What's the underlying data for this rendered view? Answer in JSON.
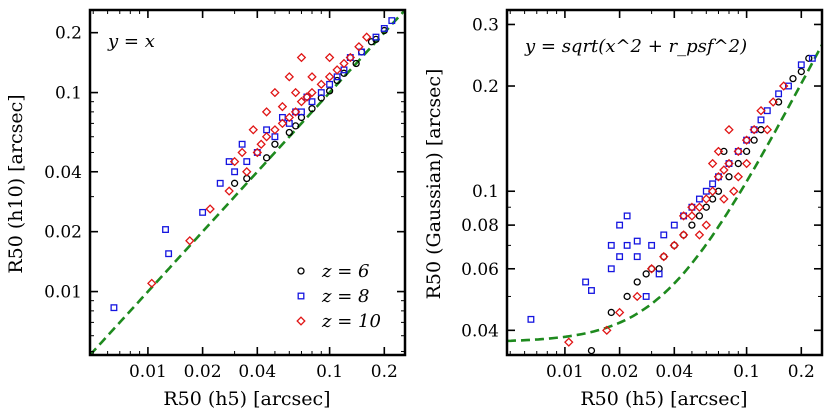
{
  "chart_data": [
    {
      "type": "scatter",
      "xscale": "log",
      "yscale": "log",
      "xlim": [
        0.0048,
        0.26
      ],
      "ylim": [
        0.0048,
        0.26
      ],
      "xticks": [
        0.01,
        0.02,
        0.04,
        0.1,
        0.2
      ],
      "yticks": [
        0.01,
        0.02,
        0.04,
        0.1,
        0.2
      ],
      "xtick_labels": [
        "0.01",
        "0.02",
        "0.04",
        "0.1",
        "0.2"
      ],
      "ytick_labels": [
        "0.01",
        "0.02",
        "0.04",
        "0.1",
        "0.2"
      ],
      "xlabel": "R50 (h5) [arcsec]",
      "ylabel": "R50 (h10) [arcsec]",
      "annotation": "y = x",
      "reference_line": {
        "type": "identity",
        "color": "#1e8a1e",
        "style": "dashed"
      },
      "legend": [
        {
          "label": "z = 6",
          "marker": "circle",
          "color": "#000000"
        },
        {
          "label": "z = 8",
          "marker": "square",
          "color": "#1515e0"
        },
        {
          "label": "z = 10",
          "marker": "diamond",
          "color": "#e01515"
        }
      ],
      "legend_position": "bottom-right",
      "series": [
        {
          "name": "z = 6",
          "points": [
            [
              0.035,
              0.037
            ],
            [
              0.045,
              0.047
            ],
            [
              0.06,
              0.063
            ],
            [
              0.08,
              0.083
            ],
            [
              0.1,
              0.102
            ],
            [
              0.12,
              0.125
            ],
            [
              0.15,
              0.16
            ],
            [
              0.17,
              0.18
            ],
            [
              0.2,
              0.205
            ],
            [
              0.05,
              0.055
            ],
            [
              0.065,
              0.068
            ],
            [
              0.09,
              0.094
            ],
            [
              0.14,
              0.14
            ],
            [
              0.18,
              0.185
            ],
            [
              0.11,
              0.115
            ],
            [
              0.07,
              0.075
            ],
            [
              0.03,
              0.035
            ]
          ]
        },
        {
          "name": "z = 8",
          "points": [
            [
              0.0065,
              0.0083
            ],
            [
              0.0125,
              0.0205
            ],
            [
              0.013,
              0.0155
            ],
            [
              0.02,
              0.025
            ],
            [
              0.025,
              0.035
            ],
            [
              0.03,
              0.04
            ],
            [
              0.035,
              0.045
            ],
            [
              0.04,
              0.05
            ],
            [
              0.05,
              0.06
            ],
            [
              0.06,
              0.07
            ],
            [
              0.07,
              0.08
            ],
            [
              0.08,
              0.09
            ],
            [
              0.1,
              0.11
            ],
            [
              0.12,
              0.13
            ],
            [
              0.15,
              0.16
            ],
            [
              0.2,
              0.21
            ],
            [
              0.045,
              0.065
            ],
            [
              0.055,
              0.075
            ],
            [
              0.09,
              0.1
            ],
            [
              0.13,
              0.15
            ],
            [
              0.18,
              0.19
            ],
            [
              0.028,
              0.045
            ],
            [
              0.033,
              0.055
            ],
            [
              0.065,
              0.08
            ],
            [
              0.075,
              0.095
            ],
            [
              0.11,
              0.12
            ],
            [
              0.22,
              0.23
            ]
          ]
        },
        {
          "name": "z = 10",
          "points": [
            [
              0.0105,
              0.011
            ],
            [
              0.017,
              0.018
            ],
            [
              0.022,
              0.026
            ],
            [
              0.028,
              0.032
            ],
            [
              0.035,
              0.04
            ],
            [
              0.04,
              0.05
            ],
            [
              0.045,
              0.06
            ],
            [
              0.05,
              0.065
            ],
            [
              0.055,
              0.07
            ],
            [
              0.06,
              0.075
            ],
            [
              0.065,
              0.08
            ],
            [
              0.07,
              0.09
            ],
            [
              0.075,
              0.095
            ],
            [
              0.08,
              0.1
            ],
            [
              0.09,
              0.11
            ],
            [
              0.1,
              0.12
            ],
            [
              0.11,
              0.13
            ],
            [
              0.12,
              0.14
            ],
            [
              0.13,
              0.15
            ],
            [
              0.145,
              0.17
            ],
            [
              0.16,
              0.19
            ],
            [
              0.07,
              0.15
            ],
            [
              0.06,
              0.12
            ],
            [
              0.05,
              0.1
            ],
            [
              0.045,
              0.08
            ],
            [
              0.038,
              0.065
            ],
            [
              0.03,
              0.045
            ],
            [
              0.08,
              0.12
            ],
            [
              0.1,
              0.15
            ],
            [
              0.065,
              0.1
            ],
            [
              0.055,
              0.085
            ],
            [
              0.042,
              0.055
            ],
            [
              0.033,
              0.05
            ]
          ]
        }
      ]
    },
    {
      "type": "scatter",
      "xscale": "log",
      "yscale": "log",
      "xlim": [
        0.0048,
        0.26
      ],
      "ylim": [
        0.034,
        0.33
      ],
      "xticks": [
        0.01,
        0.02,
        0.04,
        0.1,
        0.2
      ],
      "yticks": [
        0.04,
        0.06,
        0.08,
        0.1,
        0.2,
        0.3
      ],
      "xtick_labels": [
        "0.01",
        "0.02",
        "0.04",
        "0.1",
        "0.2"
      ],
      "ytick_labels": [
        "0.04",
        "0.06",
        "0.08",
        "0.1",
        "0.2",
        "0.3"
      ],
      "xlabel": "R50 (h5) [arcsec]",
      "ylabel": "R50 (Gaussian) [arcsec]",
      "annotation": "y = sqrt(x^2 + r_psf^2)",
      "reference_line": {
        "type": "quadrature",
        "r_psf": 0.037,
        "color": "#1e8a1e",
        "style": "dashed"
      },
      "series": [
        {
          "name": "z = 6",
          "points": [
            [
              0.014,
              0.035
            ],
            [
              0.018,
              0.045
            ],
            [
              0.022,
              0.05
            ],
            [
              0.025,
              0.055
            ],
            [
              0.03,
              0.06
            ],
            [
              0.035,
              0.065
            ],
            [
              0.04,
              0.07
            ],
            [
              0.05,
              0.08
            ],
            [
              0.06,
              0.09
            ],
            [
              0.07,
              0.1
            ],
            [
              0.08,
              0.11
            ],
            [
              0.1,
              0.13
            ],
            [
              0.12,
              0.15
            ],
            [
              0.15,
              0.18
            ],
            [
              0.18,
              0.21
            ],
            [
              0.2,
              0.22
            ],
            [
              0.22,
              0.24
            ],
            [
              0.045,
              0.075
            ],
            [
              0.055,
              0.085
            ],
            [
              0.065,
              0.095
            ],
            [
              0.09,
              0.12
            ],
            [
              0.033,
              0.06
            ],
            [
              0.028,
              0.058
            ],
            [
              0.075,
              0.13
            ],
            [
              0.11,
              0.14
            ]
          ]
        },
        {
          "name": "z = 8",
          "points": [
            [
              0.0065,
              0.043
            ],
            [
              0.013,
              0.055
            ],
            [
              0.014,
              0.052
            ],
            [
              0.018,
              0.06
            ],
            [
              0.02,
              0.065
            ],
            [
              0.022,
              0.07
            ],
            [
              0.025,
              0.072
            ],
            [
              0.02,
              0.08
            ],
            [
              0.022,
              0.085
            ],
            [
              0.025,
              0.065
            ],
            [
              0.03,
              0.07
            ],
            [
              0.035,
              0.075
            ],
            [
              0.04,
              0.08
            ],
            [
              0.05,
              0.09
            ],
            [
              0.06,
              0.1
            ],
            [
              0.07,
              0.11
            ],
            [
              0.08,
              0.12
            ],
            [
              0.1,
              0.14
            ],
            [
              0.12,
              0.16
            ],
            [
              0.15,
              0.19
            ],
            [
              0.2,
              0.23
            ],
            [
              0.045,
              0.085
            ],
            [
              0.055,
              0.095
            ],
            [
              0.065,
              0.105
            ],
            [
              0.09,
              0.13
            ],
            [
              0.11,
              0.15
            ],
            [
              0.13,
              0.17
            ],
            [
              0.17,
              0.2
            ],
            [
              0.23,
              0.24
            ],
            [
              0.018,
              0.07
            ],
            [
              0.028,
              0.05
            ],
            [
              0.033,
              0.058
            ]
          ]
        },
        {
          "name": "z = 10",
          "points": [
            [
              0.0105,
              0.037
            ],
            [
              0.017,
              0.04
            ],
            [
              0.02,
              0.045
            ],
            [
              0.025,
              0.05
            ],
            [
              0.03,
              0.06
            ],
            [
              0.035,
              0.065
            ],
            [
              0.04,
              0.07
            ],
            [
              0.045,
              0.075
            ],
            [
              0.05,
              0.085
            ],
            [
              0.055,
              0.09
            ],
            [
              0.06,
              0.095
            ],
            [
              0.065,
              0.1
            ],
            [
              0.07,
              0.11
            ],
            [
              0.075,
              0.115
            ],
            [
              0.08,
              0.12
            ],
            [
              0.09,
              0.13
            ],
            [
              0.1,
              0.14
            ],
            [
              0.11,
              0.15
            ],
            [
              0.12,
              0.17
            ],
            [
              0.14,
              0.18
            ],
            [
              0.16,
              0.2
            ],
            [
              0.065,
              0.12
            ],
            [
              0.07,
              0.13
            ],
            [
              0.08,
              0.15
            ],
            [
              0.05,
              0.09
            ],
            [
              0.045,
              0.085
            ],
            [
              0.09,
              0.11
            ],
            [
              0.1,
              0.12
            ],
            [
              0.06,
              0.08
            ],
            [
              0.055,
              0.075
            ],
            [
              0.13,
              0.15
            ],
            [
              0.085,
              0.1
            ],
            [
              0.075,
              0.095
            ]
          ]
        }
      ]
    }
  ]
}
